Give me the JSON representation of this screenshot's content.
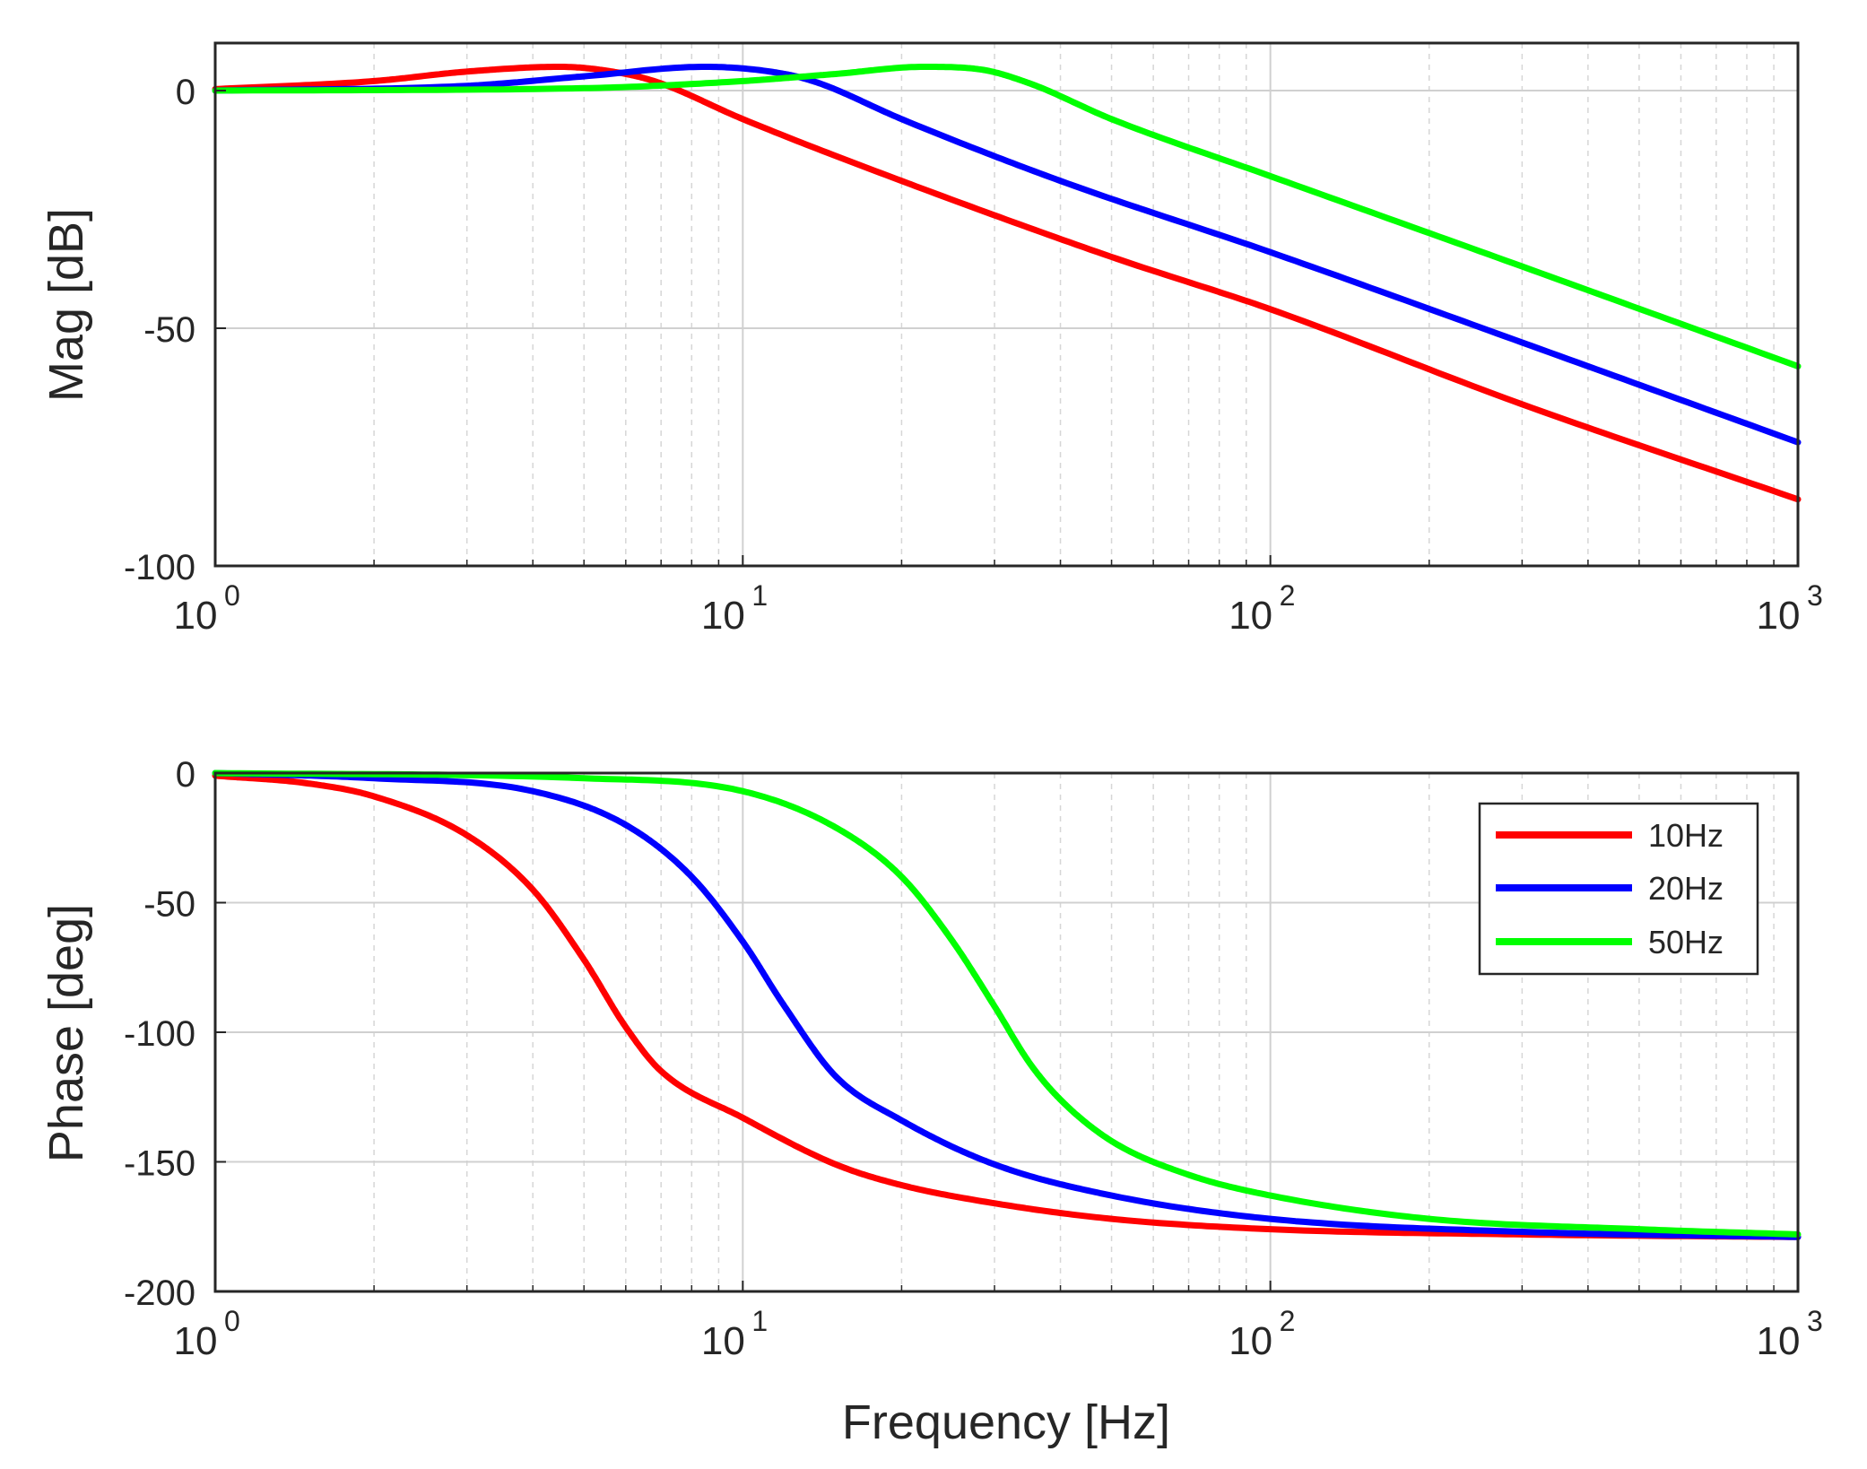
{
  "chart_data": [
    {
      "type": "line",
      "panel": "magnitude",
      "ylabel": "Mag [dB]",
      "xlabel": "",
      "xscale": "log",
      "xlim": [
        1,
        1000
      ],
      "ylim": [
        -100,
        10
      ],
      "yticks": [
        {
          "value": 0,
          "label": "0"
        },
        {
          "value": -50,
          "label": "-50"
        },
        {
          "value": -100,
          "label": "-100"
        }
      ],
      "xticks": [
        {
          "value": 1,
          "base": "10",
          "exp": "0"
        },
        {
          "value": 10,
          "base": "10",
          "exp": "1"
        },
        {
          "value": 100,
          "base": "10",
          "exp": "2"
        },
        {
          "value": 1000,
          "base": "10",
          "exp": "3"
        }
      ],
      "grid": true,
      "series": [
        {
          "name": "10Hz",
          "color": "#ff0000",
          "x": [
            1,
            2,
            3,
            4.5,
            6,
            7,
            10,
            20,
            50,
            100,
            300,
            1000
          ],
          "y": [
            0.3,
            2,
            4,
            5,
            3.5,
            1.5,
            -6,
            -19,
            -35,
            -46,
            -66,
            -86
          ]
        },
        {
          "name": "20Hz",
          "color": "#0000ff",
          "x": [
            1,
            3,
            5,
            8.5,
            12,
            14,
            20,
            40,
            100,
            300,
            1000
          ],
          "y": [
            0,
            1,
            3,
            5,
            3.5,
            1.5,
            -6,
            -19,
            -34,
            -53,
            -74
          ]
        },
        {
          "name": "50Hz",
          "color": "#00ff00",
          "x": [
            1,
            5,
            10,
            15,
            22,
            28,
            35,
            50,
            100,
            300,
            1000
          ],
          "y": [
            0,
            0.5,
            2,
            3.5,
            5,
            4.5,
            1.5,
            -6,
            -18,
            -37,
            -58
          ]
        }
      ]
    },
    {
      "type": "line",
      "panel": "phase",
      "ylabel": "Phase [deg]",
      "xlabel": "Frequency [Hz]",
      "xscale": "log",
      "xlim": [
        1,
        1000
      ],
      "ylim": [
        -200,
        0
      ],
      "yticks": [
        {
          "value": 0,
          "label": "0"
        },
        {
          "value": -50,
          "label": "-50"
        },
        {
          "value": -100,
          "label": "-100"
        },
        {
          "value": -150,
          "label": "-150"
        },
        {
          "value": -200,
          "label": "-200"
        }
      ],
      "xticks": [
        {
          "value": 1,
          "base": "10",
          "exp": "0"
        },
        {
          "value": 10,
          "base": "10",
          "exp": "1"
        },
        {
          "value": 100,
          "base": "10",
          "exp": "2"
        },
        {
          "value": 1000,
          "base": "10",
          "exp": "3"
        }
      ],
      "grid": true,
      "legend": {
        "position": "top-right",
        "entries": [
          "10Hz",
          "20Hz",
          "50Hz"
        ]
      },
      "series": [
        {
          "name": "10Hz",
          "color": "#ff0000",
          "x": [
            1,
            1.5,
            2,
            3,
            4,
            5,
            6,
            7,
            10,
            15,
            20,
            30,
            50,
            100,
            300,
            1000
          ],
          "y": [
            -1,
            -4,
            -9,
            -24,
            -45,
            -72,
            -98,
            -115,
            -133,
            -151,
            -159,
            -166,
            -172,
            -176,
            -178,
            -179
          ]
        },
        {
          "name": "20Hz",
          "color": "#0000ff",
          "x": [
            1,
            2,
            4,
            6,
            8,
            10,
            12,
            15,
            20,
            30,
            50,
            100,
            300,
            1000
          ],
          "y": [
            0,
            -2,
            -7,
            -20,
            -40,
            -65,
            -90,
            -117,
            -134,
            -151,
            -163,
            -172,
            -177,
            -179
          ]
        },
        {
          "name": "50Hz",
          "color": "#00ff00",
          "x": [
            1,
            5,
            10,
            15,
            20,
            25,
            30,
            35,
            40,
            50,
            70,
            100,
            200,
            500,
            1000
          ],
          "y": [
            0,
            -2,
            -7,
            -21,
            -40,
            -65,
            -90,
            -112,
            -126,
            -142,
            -155,
            -163,
            -172,
            -176,
            -178
          ]
        }
      ]
    }
  ]
}
